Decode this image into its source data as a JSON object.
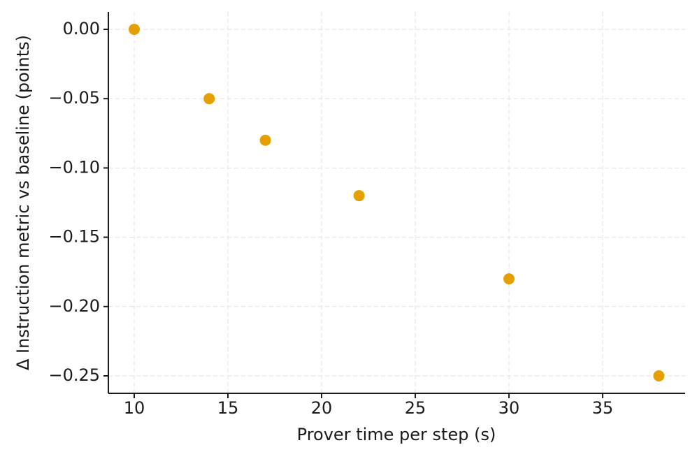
{
  "chart_data": {
    "type": "scatter",
    "x_label": "Prover time per step (s)",
    "y_label": "Δ Instruction metric vs baseline (points)",
    "x": [
      10,
      14,
      17,
      22,
      30,
      38
    ],
    "values": [
      0,
      -0.05,
      -0.08,
      -0.12,
      -0.18,
      -0.25
    ],
    "color": "#e69f00",
    "xlim": [
      8.62,
      39.4
    ],
    "ylim": [
      -0.2626,
      0.0126
    ],
    "xticks": [
      10,
      15,
      20,
      25,
      30,
      35
    ],
    "yticks": [
      {
        "value": 0,
        "label": "0.00"
      },
      {
        "value": -0.05,
        "label": "−0.05"
      },
      {
        "value": -0.1,
        "label": "−0.10"
      },
      {
        "value": -0.15,
        "label": "−0.15"
      },
      {
        "value": -0.2,
        "label": "−0.20"
      },
      {
        "value": -0.25,
        "label": "−0.25"
      }
    ],
    "grid": true
  }
}
